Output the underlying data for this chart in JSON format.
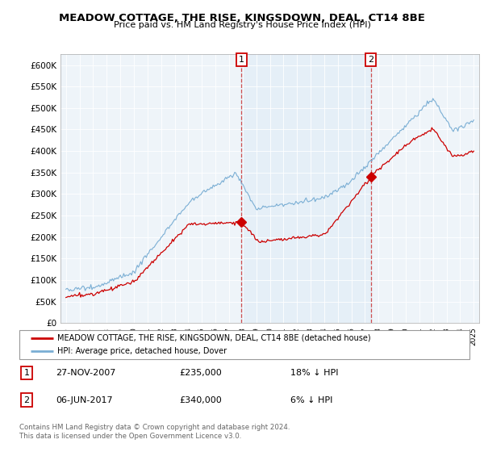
{
  "title": "MEADOW COTTAGE, THE RISE, KINGSDOWN, DEAL, CT14 8BE",
  "subtitle": "Price paid vs. HM Land Registry's House Price Index (HPI)",
  "ylabel_ticks": [
    "£0",
    "£50K",
    "£100K",
    "£150K",
    "£200K",
    "£250K",
    "£300K",
    "£350K",
    "£400K",
    "£450K",
    "£500K",
    "£550K",
    "£600K"
  ],
  "ytick_values": [
    0,
    50000,
    100000,
    150000,
    200000,
    250000,
    300000,
    350000,
    400000,
    450000,
    500000,
    550000,
    600000
  ],
  "ylim": [
    0,
    625000
  ],
  "x_start_year": 1995,
  "x_end_year": 2025,
  "purchase1_date": 2007.9,
  "purchase1_price": 235000,
  "purchase1_label": "1",
  "purchase2_date": 2017.43,
  "purchase2_price": 340000,
  "purchase2_label": "2",
  "hpi_color": "#7aaed4",
  "hpi_fill_color": "#d6e8f5",
  "price_color": "#cc0000",
  "vline_color": "#cc3333",
  "legend_house_label": "MEADOW COTTAGE, THE RISE, KINGSDOWN, DEAL, CT14 8BE (detached house)",
  "legend_hpi_label": "HPI: Average price, detached house, Dover",
  "table_row1": [
    "1",
    "27-NOV-2007",
    "£235,000",
    "18% ↓ HPI"
  ],
  "table_row2": [
    "2",
    "06-JUN-2017",
    "£340,000",
    "6% ↓ HPI"
  ],
  "footer": "Contains HM Land Registry data © Crown copyright and database right 2024.\nThis data is licensed under the Open Government Licence v3.0.",
  "background_color": "#ffffff",
  "plot_bg_color": "#eef4f9"
}
